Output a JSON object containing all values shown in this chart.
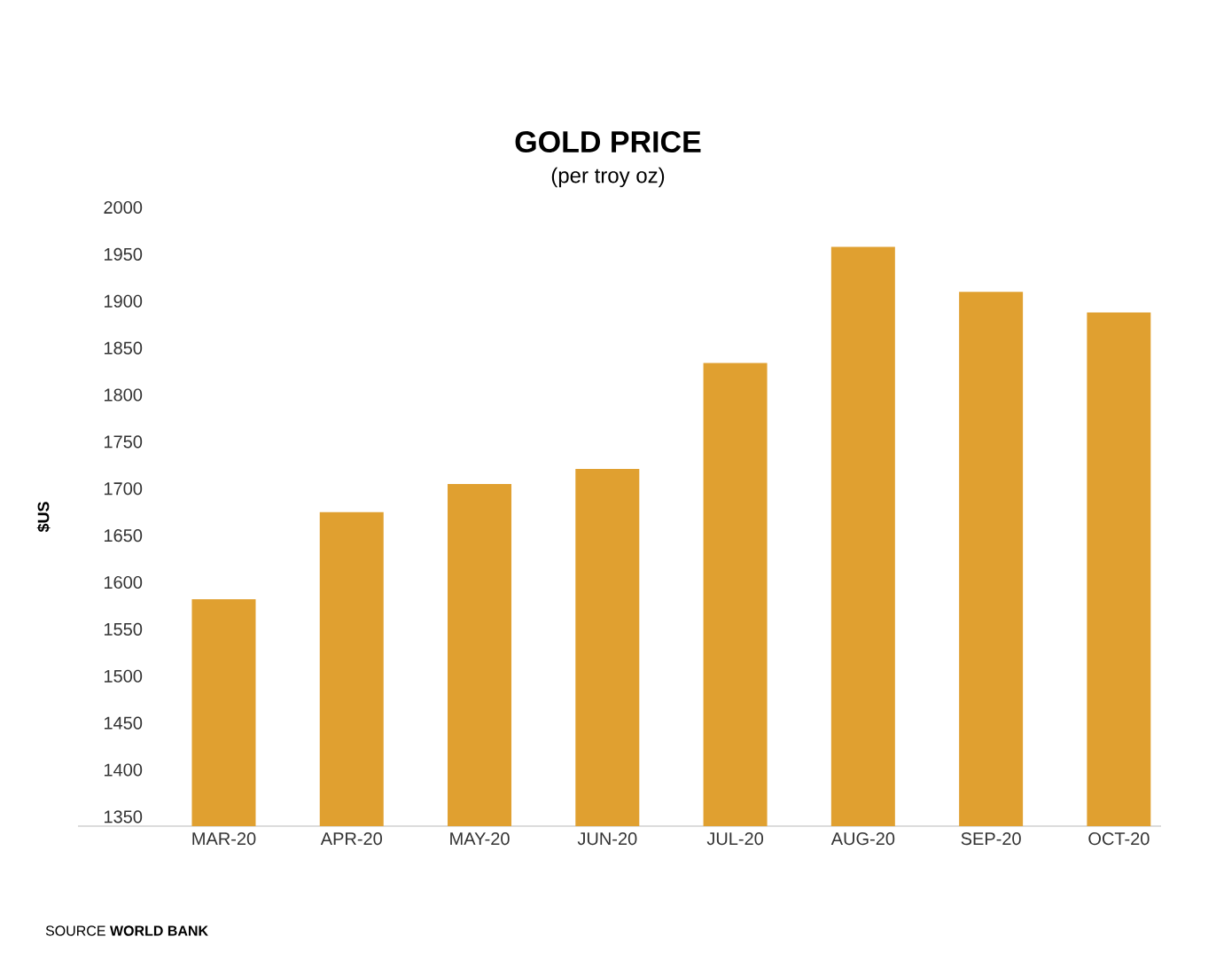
{
  "chart_data": {
    "type": "bar",
    "title": "GOLD PRICE",
    "subtitle": "(per troy oz)",
    "ylabel": "$US",
    "categories": [
      "MAR-20",
      "APR-20",
      "MAY-20",
      "JUN-20",
      "JUL-20",
      "AUG-20",
      "SEP-20",
      "OCT-20"
    ],
    "values": [
      1582,
      1675,
      1705,
      1721,
      1834,
      1958,
      1910,
      1888
    ],
    "color": "#e0a030",
    "ylim": [
      1340,
      2000
    ],
    "yticks": [
      1350,
      1400,
      1450,
      1500,
      1550,
      1600,
      1650,
      1700,
      1750,
      1800,
      1850,
      1900,
      1950,
      2000
    ],
    "annotations": [
      "SOURCE **WORLD BANK**"
    ]
  }
}
